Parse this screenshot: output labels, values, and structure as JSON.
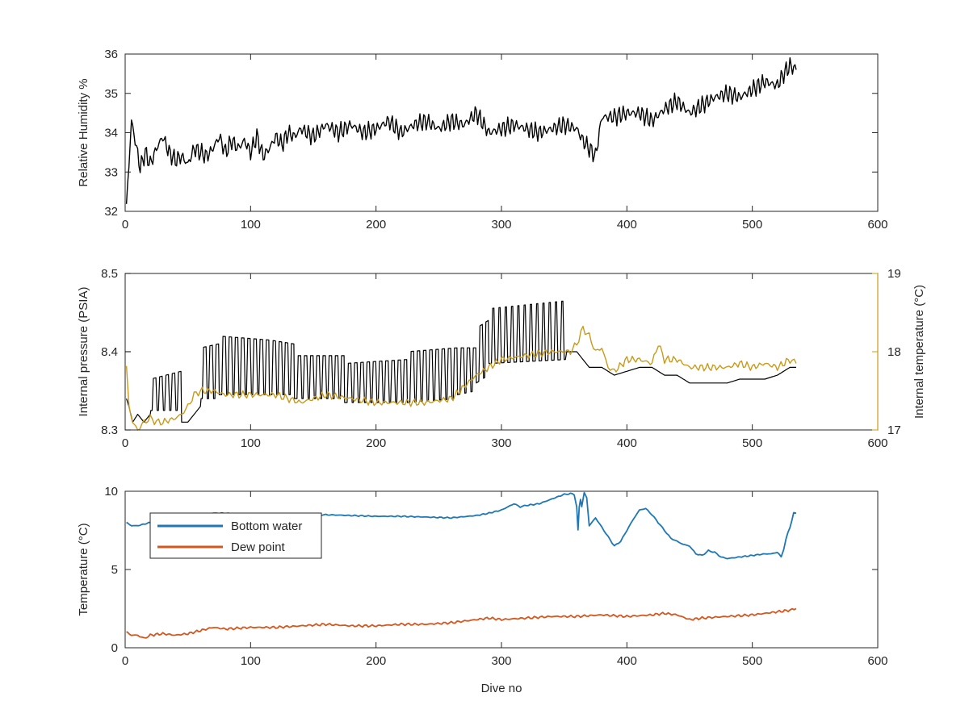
{
  "colors": {
    "axis": "#262626",
    "humidity": "#000000",
    "pressure": "#000000",
    "internal_temperature": "#c99a1a",
    "bottom_water": "#1f77b4",
    "dew_point": "#d4571f"
  },
  "chart_data": [
    {
      "type": "line",
      "xlabel": "",
      "ylabel": "Relative Humidity %",
      "xlim": [
        0,
        600
      ],
      "ylim": [
        32,
        36
      ],
      "xticks": [
        "0",
        "100",
        "200",
        "300",
        "400",
        "500",
        "600"
      ],
      "yticks": [
        "32",
        "33",
        "34",
        "35",
        "36"
      ],
      "grid": false,
      "series": [
        {
          "x": [
            1,
            3,
            5,
            8,
            12,
            16,
            20,
            25,
            30,
            35,
            40,
            45,
            50,
            55,
            60,
            65,
            70,
            75,
            80,
            85,
            90,
            95,
            100,
            105,
            110,
            115,
            120,
            125,
            130,
            135,
            140,
            150,
            160,
            170,
            180,
            190,
            200,
            210,
            220,
            230,
            240,
            250,
            260,
            270,
            280,
            290,
            300,
            310,
            320,
            330,
            340,
            350,
            360,
            365,
            370,
            375,
            380,
            390,
            400,
            410,
            420,
            430,
            440,
            450,
            460,
            470,
            480,
            490,
            500,
            510,
            520,
            525,
            530,
            535
          ],
          "y": [
            32.1,
            33.2,
            34.3,
            33.8,
            33.1,
            33.5,
            33.2,
            33.6,
            33.9,
            33.5,
            33.3,
            33.4,
            33.2,
            33.6,
            33.5,
            33.4,
            33.6,
            33.9,
            33.5,
            33.8,
            33.6,
            33.8,
            33.5,
            33.9,
            33.4,
            33.6,
            33.9,
            33.7,
            34.0,
            33.9,
            34.1,
            33.9,
            34.2,
            34.0,
            34.2,
            34.0,
            34.1,
            34.3,
            34.0,
            34.2,
            34.3,
            34.1,
            34.3,
            34.2,
            34.5,
            34.0,
            34.1,
            34.2,
            34.1,
            34.0,
            34.1,
            34.2,
            34.1,
            33.8,
            33.6,
            33.4,
            34.4,
            34.4,
            34.5,
            34.5,
            34.3,
            34.6,
            34.8,
            34.5,
            34.7,
            34.9,
            35.0,
            34.9,
            35.1,
            35.3,
            35.2,
            35.5,
            35.7,
            35.6
          ]
        }
      ]
    },
    {
      "type": "line",
      "xlabel": "",
      "ylabel": "Internal pressure (PSIA)",
      "ylabel_right": "Internal temperature (°C)",
      "xlim": [
        0,
        600
      ],
      "ylim": [
        8.3,
        8.5
      ],
      "ylim_right": [
        17,
        19
      ],
      "xticks": [
        "0",
        "100",
        "200",
        "300",
        "400",
        "500",
        "600"
      ],
      "yticks": [
        "8.3",
        "8.4",
        "8.5"
      ],
      "yticks_right": [
        "17",
        "18",
        "19"
      ],
      "grid": false,
      "series": [
        {
          "axis": "left",
          "x": [
            1,
            3,
            6,
            10,
            15,
            20,
            20.5,
            44.5,
            45,
            50,
            55,
            60,
            60.5,
            74.5,
            75,
            114.5,
            115,
            134.5,
            135,
            174.5,
            175,
            224.5,
            225,
            264.5,
            265,
            279.5,
            280,
            289.5,
            290,
            351,
            352,
            356,
            360,
            365,
            370,
            380,
            390,
            400,
            410,
            420,
            430,
            440,
            450,
            460,
            470,
            480,
            490,
            500,
            510,
            520,
            530,
            535
          ],
          "y": [
            8.34,
            8.33,
            8.31,
            8.32,
            8.31,
            8.32,
            8.33,
            8.33,
            8.31,
            8.31,
            8.32,
            8.33,
            8.37,
            8.37,
            8.38,
            8.38,
            8.38,
            8.38,
            8.37,
            8.37,
            8.36,
            8.36,
            8.37,
            8.37,
            8.38,
            8.38,
            8.4,
            8.4,
            8.415,
            8.415,
            8.4,
            8.4,
            8.4,
            8.39,
            8.38,
            8.38,
            8.37,
            8.375,
            8.38,
            8.38,
            8.37,
            8.37,
            8.36,
            8.36,
            8.36,
            8.36,
            8.365,
            8.365,
            8.365,
            8.37,
            8.38,
            8.38
          ],
          "band_top": [
            8.34,
            8.33,
            8.31,
            8.32,
            8.31,
            8.32,
            8.365,
            8.375,
            8.31,
            8.31,
            8.32,
            8.33,
            8.405,
            8.41,
            8.42,
            8.415,
            8.415,
            8.41,
            8.395,
            8.395,
            8.385,
            8.39,
            8.4,
            8.405,
            8.405,
            8.405,
            8.43,
            8.44,
            8.455,
            8.465,
            8.4,
            8.4,
            8.4,
            8.39,
            8.38,
            8.38,
            8.37,
            8.375,
            8.38,
            8.38,
            8.37,
            8.37,
            8.36,
            8.36,
            8.36,
            8.36,
            8.365,
            8.365,
            8.365,
            8.37,
            8.38,
            8.38
          ],
          "band_bottom": [
            8.34,
            8.33,
            8.31,
            8.32,
            8.31,
            8.32,
            8.325,
            8.325,
            8.31,
            8.31,
            8.32,
            8.33,
            8.34,
            8.34,
            8.345,
            8.345,
            8.345,
            8.345,
            8.34,
            8.34,
            8.335,
            8.335,
            8.335,
            8.34,
            8.345,
            8.35,
            8.36,
            8.37,
            8.385,
            8.39,
            8.4,
            8.4,
            8.4,
            8.39,
            8.38,
            8.38,
            8.37,
            8.375,
            8.38,
            8.38,
            8.37,
            8.37,
            8.36,
            8.36,
            8.36,
            8.36,
            8.365,
            8.365,
            8.365,
            8.37,
            8.38,
            8.38
          ]
        },
        {
          "axis": "right",
          "x": [
            1,
            3,
            6,
            10,
            15,
            20,
            25,
            30,
            40,
            45,
            50,
            55,
            60,
            70,
            80,
            100,
            120,
            140,
            160,
            180,
            200,
            220,
            240,
            260,
            270,
            280,
            290,
            300,
            320,
            340,
            355,
            360,
            365,
            370,
            375,
            380,
            385,
            390,
            400,
            410,
            420,
            425,
            430,
            440,
            450,
            460,
            470,
            480,
            490,
            500,
            510,
            520,
            530,
            535
          ],
          "y": [
            17.8,
            17.3,
            17.1,
            17.0,
            17.1,
            17.15,
            17.1,
            17.1,
            17.15,
            17.2,
            17.3,
            17.45,
            17.5,
            17.5,
            17.45,
            17.45,
            17.45,
            17.35,
            17.45,
            17.4,
            17.35,
            17.35,
            17.35,
            17.4,
            17.55,
            17.7,
            17.8,
            17.9,
            17.95,
            18.0,
            18.0,
            18.1,
            18.3,
            18.2,
            18.0,
            18.05,
            17.8,
            17.75,
            17.9,
            17.9,
            17.85,
            18.1,
            17.9,
            17.9,
            17.8,
            17.8,
            17.8,
            17.8,
            17.85,
            17.8,
            17.85,
            17.8,
            17.9,
            17.85
          ]
        }
      ]
    },
    {
      "type": "line",
      "xlabel": "Dive no",
      "ylabel": "Temperature (°C)",
      "xlim": [
        0,
        600
      ],
      "ylim": [
        0,
        10
      ],
      "xticks": [
        "0",
        "100",
        "200",
        "300",
        "400",
        "500",
        "600"
      ],
      "yticks": [
        "0",
        "5",
        "10"
      ],
      "grid": false,
      "legend_position": "top-left",
      "series": [
        {
          "name": "Bottom water",
          "x": [
            1,
            5,
            10,
            20,
            30,
            40,
            50,
            60,
            70,
            80,
            90,
            100,
            120,
            140,
            160,
            180,
            200,
            220,
            240,
            260,
            280,
            290,
            300,
            310,
            315,
            320,
            330,
            340,
            350,
            355,
            358,
            360,
            361,
            362,
            363,
            364,
            366,
            368,
            370,
            375,
            380,
            385,
            390,
            395,
            400,
            405,
            410,
            415,
            420,
            425,
            430,
            435,
            440,
            445,
            450,
            455,
            460,
            465,
            470,
            475,
            480,
            490,
            500,
            510,
            515,
            520,
            523,
            525,
            527,
            530,
            533,
            535
          ],
          "y": [
            8.0,
            7.8,
            7.8,
            8.0,
            8.2,
            8.4,
            8.4,
            8.5,
            8.6,
            8.6,
            8.5,
            8.5,
            8.5,
            8.5,
            8.5,
            8.45,
            8.4,
            8.4,
            8.35,
            8.3,
            8.45,
            8.6,
            8.8,
            9.2,
            9.0,
            9.1,
            9.2,
            9.5,
            9.8,
            9.85,
            9.8,
            9.0,
            7.5,
            9.0,
            9.5,
            9.0,
            9.9,
            9.6,
            7.8,
            8.3,
            7.7,
            7.1,
            6.5,
            6.8,
            7.5,
            8.2,
            8.8,
            8.9,
            8.5,
            8.0,
            7.5,
            7.0,
            6.8,
            6.6,
            6.5,
            6.0,
            5.9,
            6.2,
            6.1,
            5.8,
            5.7,
            5.8,
            5.9,
            6.0,
            6.0,
            6.1,
            5.8,
            6.3,
            7.0,
            7.7,
            8.6,
            8.6
          ]
        },
        {
          "name": "Dew point",
          "x": [
            1,
            5,
            10,
            15,
            20,
            30,
            40,
            50,
            60,
            70,
            80,
            100,
            120,
            140,
            160,
            180,
            200,
            220,
            240,
            260,
            280,
            290,
            300,
            320,
            340,
            360,
            380,
            400,
            420,
            430,
            440,
            450,
            460,
            480,
            500,
            510,
            520,
            530,
            535
          ],
          "y": [
            1.0,
            0.8,
            0.8,
            0.6,
            0.8,
            0.9,
            0.8,
            0.9,
            1.1,
            1.3,
            1.2,
            1.3,
            1.3,
            1.4,
            1.5,
            1.4,
            1.4,
            1.5,
            1.5,
            1.6,
            1.8,
            1.9,
            1.8,
            1.9,
            2.0,
            2.0,
            2.1,
            2.0,
            2.1,
            2.2,
            2.1,
            1.8,
            1.9,
            2.0,
            2.1,
            2.2,
            2.3,
            2.4,
            2.5
          ]
        }
      ]
    }
  ]
}
